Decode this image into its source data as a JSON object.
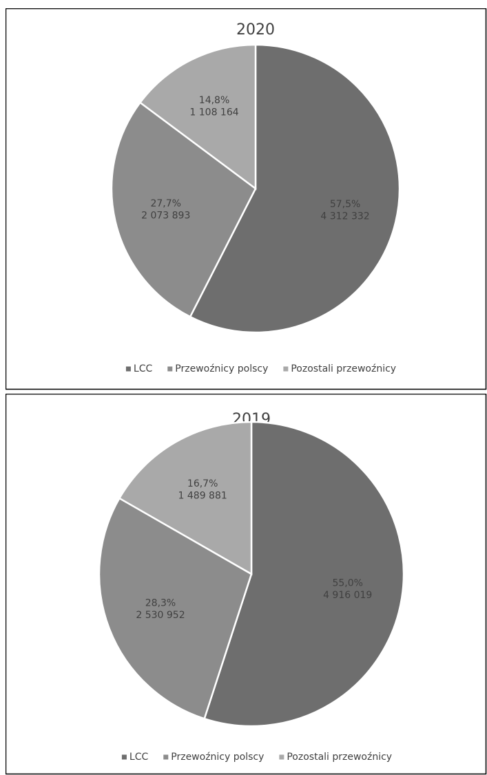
{
  "chart_data": [
    {
      "type": "pie",
      "title": "2020",
      "categories": [
        "LCC",
        "Przewoźnicy polscy",
        "Pozostali przewoźnicy"
      ],
      "values": [
        57.5,
        27.7,
        14.8
      ],
      "value_labels": [
        "57,5%",
        "27,7%",
        "14,8%"
      ],
      "counts": [
        4312332,
        2073893,
        1108164
      ],
      "count_labels": [
        "4 312 332",
        "2 073 893",
        "1 108 164"
      ],
      "colors": [
        "#6e6e6e",
        "#8c8c8c",
        "#a9a9a9"
      ],
      "legend": "bottom"
    },
    {
      "type": "pie",
      "title": "2019",
      "categories": [
        "LCC",
        "Przewoźnicy polscy",
        "Pozostali przewoźnicy"
      ],
      "values": [
        55.0,
        28.3,
        16.7
      ],
      "value_labels": [
        "55,0%",
        "28,3%",
        "16,7%"
      ],
      "counts": [
        4916019,
        2530952,
        1489881
      ],
      "count_labels": [
        "4 916 019",
        "2 530 952",
        "1 489 881"
      ],
      "colors": [
        "#6e6e6e",
        "#8c8c8c",
        "#a9a9a9"
      ],
      "legend": "bottom"
    }
  ]
}
